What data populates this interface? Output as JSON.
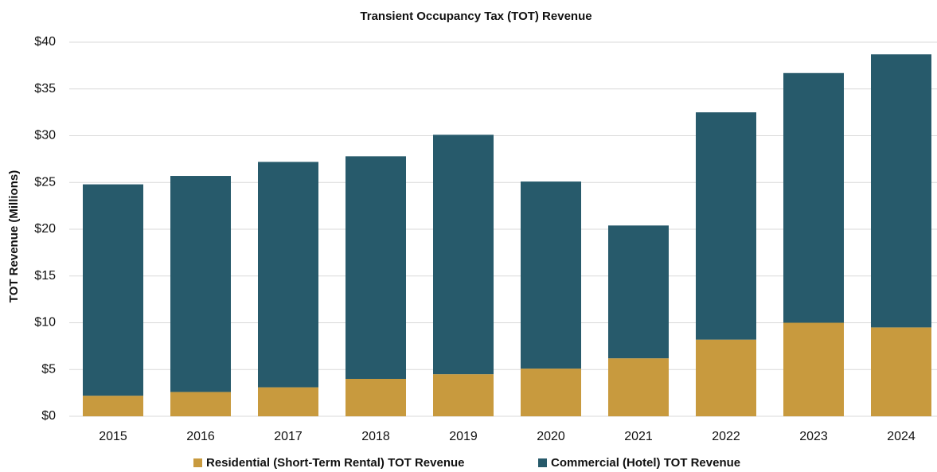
{
  "chart_data": {
    "type": "stacked_bar",
    "title": "Transient Occupancy Tax (TOT) Revenue",
    "y_label": "TOT Revenue (Millions)",
    "categories": [
      "2015",
      "2016",
      "2017",
      "2018",
      "2019",
      "2020",
      "2021",
      "2022",
      "2023",
      "2024"
    ],
    "series": [
      {
        "name": "Residential (Short-Term Rental) TOT Revenue",
        "color": "#c89a3e",
        "values": [
          2.2,
          2.6,
          3.1,
          4.0,
          4.5,
          5.1,
          6.2,
          8.2,
          10.0,
          9.5
        ]
      },
      {
        "name": "Commercial (Hotel) TOT Revenue",
        "color": "#275a6b",
        "values": [
          22.6,
          23.1,
          24.1,
          23.8,
          25.6,
          20.0,
          14.2,
          24.3,
          26.7,
          29.2
        ]
      }
    ],
    "ylim": [
      0,
      40
    ],
    "yticks": [
      {
        "value": 0,
        "label": "$0"
      },
      {
        "value": 5,
        "label": "$5"
      },
      {
        "value": 10,
        "label": "$10"
      },
      {
        "value": 15,
        "label": "$15"
      },
      {
        "value": 20,
        "label": "$20"
      },
      {
        "value": 25,
        "label": "$25"
      },
      {
        "value": 30,
        "label": "$30"
      },
      {
        "value": 35,
        "label": "$35"
      },
      {
        "value": 40,
        "label": "$40"
      }
    ],
    "grid": true,
    "legend": "bottom"
  }
}
